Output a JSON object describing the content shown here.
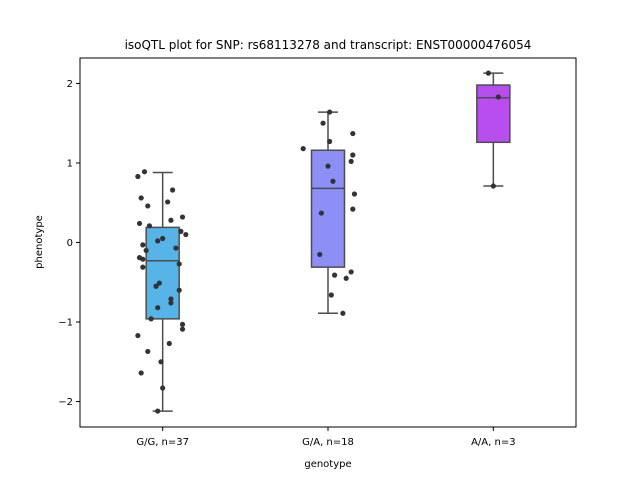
{
  "chart_data": {
    "type": "box",
    "title": "isoQTL plot for SNP: rs68113278 and transcript: ENST00000476054",
    "xlabel": "genotype",
    "ylabel": "phenotype",
    "ylim": [
      -2.32,
      2.32
    ],
    "yticks": [
      -2,
      -1,
      0,
      1,
      2
    ],
    "ytick_labels": [
      "−2",
      "−1",
      "0",
      "1",
      "2"
    ],
    "grid": false,
    "legend": "none",
    "categories": [
      "G/G, n=37",
      "G/A, n=18",
      "A/A, n=3"
    ],
    "colors": [
      "#56b4e9",
      "#8e8ef7",
      "#b94eef"
    ],
    "box_edge_color": "#4d4d4d",
    "point_color": "#333333",
    "boxes": [
      {
        "q1": -0.96,
        "median": -0.23,
        "q3": 0.19,
        "whisker_low": -2.12,
        "whisker_high": 0.88
      },
      {
        "q1": -0.31,
        "median": 0.68,
        "q3": 1.16,
        "whisker_low": -0.89,
        "whisker_high": 1.64
      },
      {
        "q1": 1.26,
        "median": 1.82,
        "q3": 1.98,
        "whisker_low": 0.71,
        "whisker_high": 2.13
      }
    ],
    "points": [
      [
        0.89,
        0.83,
        0.66,
        0.56,
        0.51,
        0.46,
        0.32,
        0.28,
        0.24,
        0.21,
        0.14,
        0.1,
        0.05,
        0.02,
        -0.03,
        -0.07,
        -0.1,
        -0.19,
        -0.21,
        -0.27,
        -0.31,
        -0.51,
        -0.55,
        -0.6,
        -0.71,
        -0.76,
        -0.82,
        -0.96,
        -1.03,
        -1.09,
        -1.17,
        -1.27,
        -1.37,
        -1.5,
        -1.64,
        -1.83,
        -2.12
      ],
      [
        1.64,
        1.5,
        1.37,
        1.27,
        1.18,
        1.1,
        1.02,
        0.96,
        0.77,
        0.61,
        0.42,
        0.37,
        -0.15,
        -0.37,
        -0.41,
        -0.45,
        -0.66,
        -0.89
      ],
      [
        2.13,
        1.83,
        0.71
      ]
    ],
    "jitter": [
      [
        -0.11,
        -0.15,
        0.06,
        -0.13,
        0.03,
        -0.09,
        0.12,
        0.05,
        -0.14,
        -0.08,
        0.11,
        0.14,
        0.0,
        -0.03,
        -0.12,
        0.08,
        -0.1,
        -0.14,
        -0.12,
        0.1,
        -0.12,
        -0.02,
        -0.04,
        0.1,
        0.05,
        0.05,
        -0.03,
        -0.07,
        0.12,
        0.12,
        -0.15,
        0.04,
        -0.09,
        -0.01,
        -0.13,
        -0.0,
        -0.03
      ],
      [
        0.01,
        -0.03,
        0.15,
        0.01,
        -0.15,
        0.15,
        0.14,
        0.0,
        0.03,
        0.16,
        0.15,
        -0.04,
        -0.05,
        0.14,
        0.04,
        0.11,
        0.02,
        0.09
      ],
      [
        -0.03,
        0.03,
        0.0
      ]
    ]
  }
}
